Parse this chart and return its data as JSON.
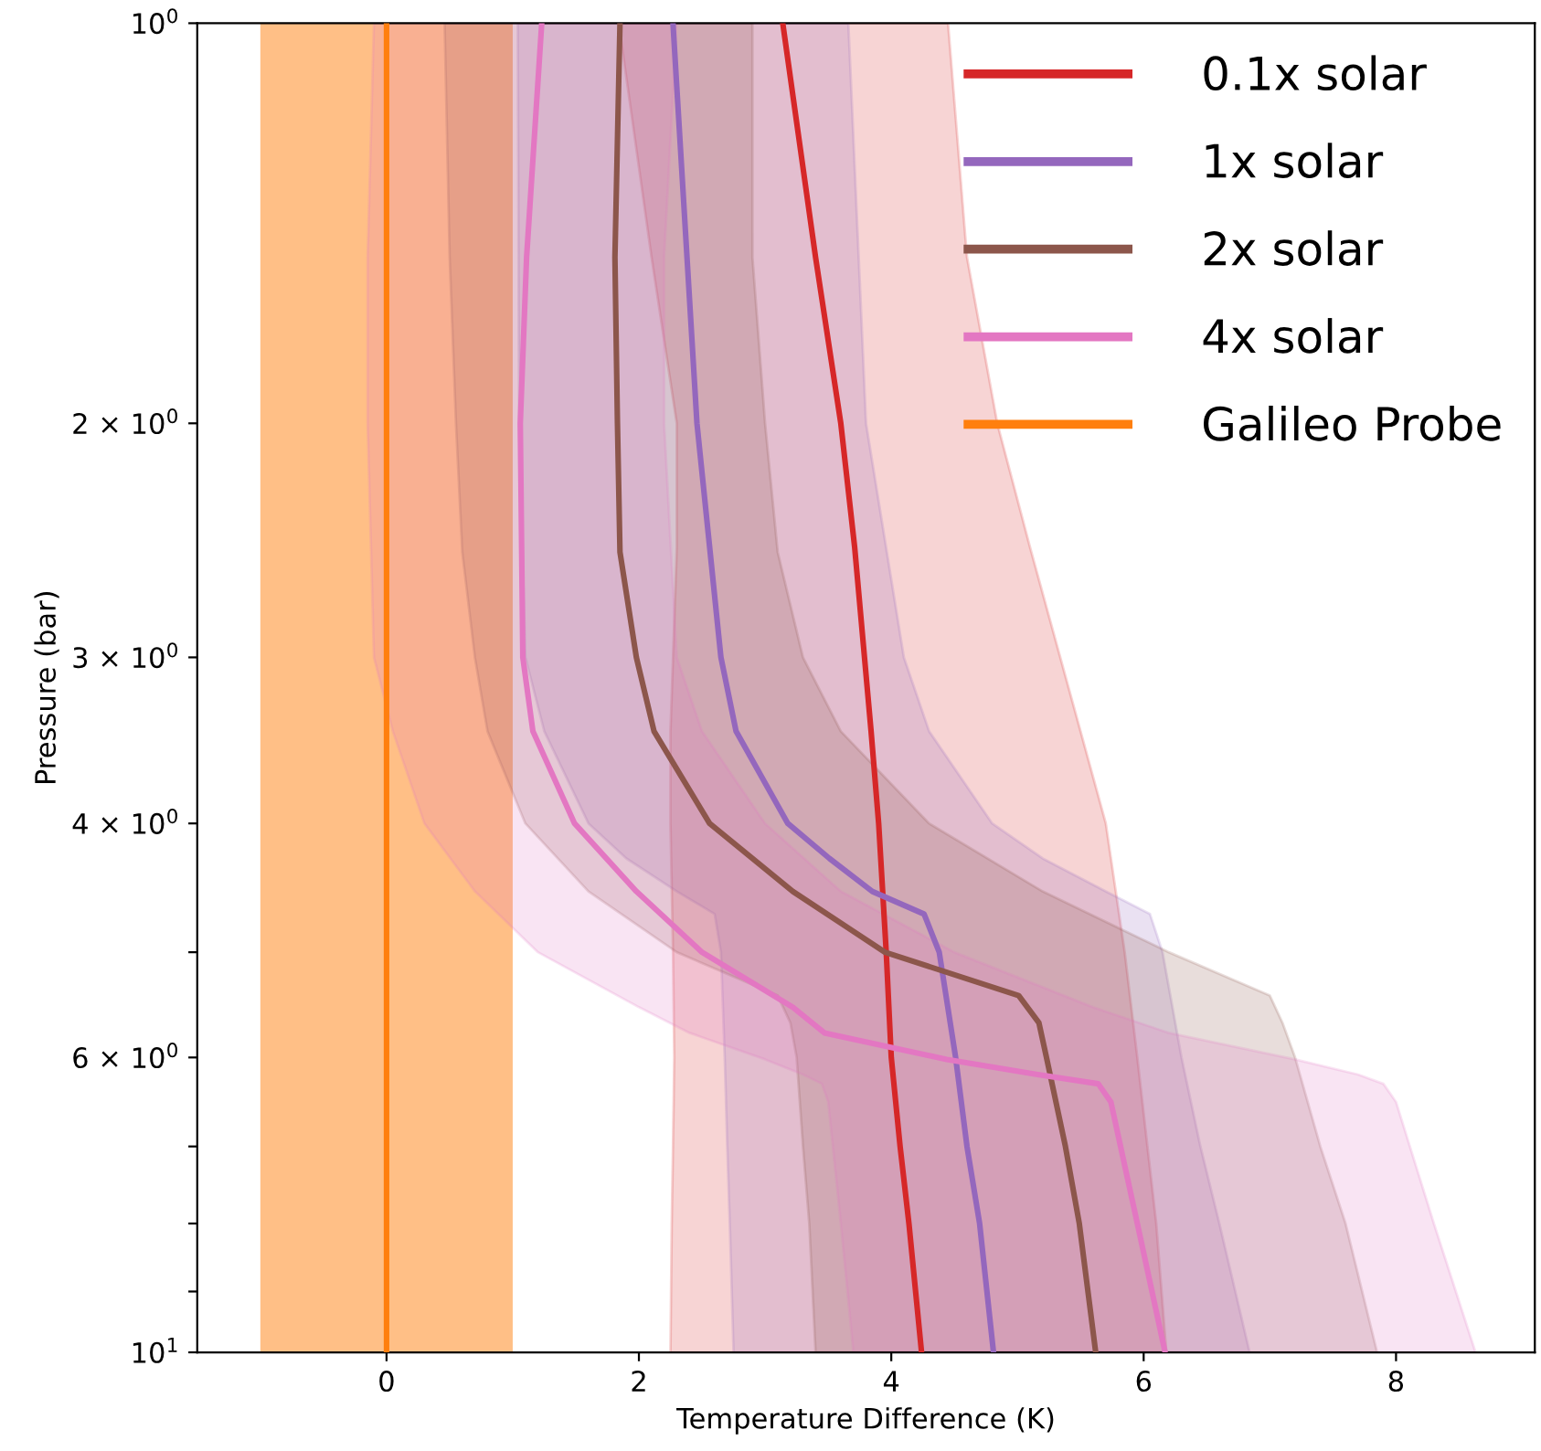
{
  "chart_data": {
    "type": "line",
    "orientation": "horizontal",
    "xlabel": "Temperature Difference (K)",
    "ylabel": "Pressure (bar)",
    "log": "y",
    "xlim": [
      -1.5,
      9.1
    ],
    "ylim": [
      10,
      1
    ],
    "xticks": [
      0,
      2,
      4,
      6,
      8
    ],
    "yticks": [
      {
        "value": 1,
        "label": "10$^{0}$"
      },
      {
        "value": 2,
        "label": "2 × 10$^{0}$"
      },
      {
        "value": 3,
        "label": "3 × 10$^{0}$"
      },
      {
        "value": 4,
        "label": "4 × 10$^{0}$"
      },
      {
        "value": 5,
        "label": null
      },
      {
        "value": 6,
        "label": "6 × 10$^{0}$"
      },
      {
        "value": 7,
        "label": null
      },
      {
        "value": 8,
        "label": null
      },
      {
        "value": 9,
        "label": null
      },
      {
        "value": 10,
        "label": "10$^{1}$"
      }
    ],
    "grid": false,
    "legend": "top right",
    "line_style": "solid",
    "marker": "none",
    "series": [
      {
        "name": "0.1x solar",
        "color": "#d62728",
        "values": [
          3.14,
          3.4,
          3.6,
          3.71,
          3.84,
          3.9,
          3.96,
          4.0,
          4.07,
          4.14,
          4.24
        ],
        "x": [
          1,
          1.5,
          2,
          2.48,
          3.41,
          4,
          5,
          6,
          7,
          8,
          10
        ],
        "upper": [
          4.45,
          4.6,
          4.84,
          5.1,
          5.5,
          5.7,
          5.85,
          5.95,
          6.03,
          6.1,
          6.18
        ],
        "lower": [
          1.84,
          2.1,
          2.3,
          2.3,
          2.25,
          2.25,
          2.27,
          2.28,
          2.27,
          2.26,
          2.25
        ]
      },
      {
        "name": "1x solar",
        "color": "#9467bd",
        "values": [
          2.27,
          2.46,
          2.65,
          2.77,
          3.18,
          3.51,
          3.85,
          4.26,
          4.38,
          4.51,
          4.6,
          4.7,
          4.81
        ],
        "x": [
          1,
          2,
          3,
          3.41,
          4,
          4.25,
          4.5,
          4.68,
          5,
          6,
          7,
          8,
          10
        ],
        "upper": [
          3.66,
          3.8,
          4.1,
          4.3,
          4.8,
          5.2,
          5.7,
          6.05,
          6.15,
          6.3,
          6.45,
          6.6,
          6.84
        ],
        "lower": [
          1.04,
          1.05,
          1.1,
          1.25,
          1.6,
          1.9,
          2.3,
          2.6,
          2.65,
          2.68,
          2.7,
          2.72,
          2.75
        ]
      },
      {
        "name": "2x solar",
        "color": "#8c564b",
        "values": [
          1.85,
          1.81,
          1.83,
          1.85,
          1.98,
          2.12,
          2.56,
          3.22,
          3.95,
          5.01,
          5.17,
          5.23,
          5.38,
          5.49,
          5.62
        ],
        "x": [
          1,
          1.5,
          2,
          2.5,
          3,
          3.41,
          4,
          4.5,
          5,
          5.39,
          5.65,
          6,
          7,
          8,
          10
        ],
        "upper": [
          2.9,
          2.9,
          3.0,
          3.1,
          3.3,
          3.6,
          4.3,
          5.2,
          6.2,
          7.0,
          7.1,
          7.2,
          7.4,
          7.6,
          7.85
        ],
        "lower": [
          0.46,
          0.5,
          0.55,
          0.6,
          0.7,
          0.8,
          1.1,
          1.6,
          2.3,
          3.1,
          3.2,
          3.25,
          3.3,
          3.35,
          3.4
        ]
      },
      {
        "name": "4x solar",
        "color": "#e377c2",
        "values": [
          1.23,
          1.11,
          1.06,
          1.08,
          1.16,
          1.49,
          1.98,
          2.5,
          3.22,
          3.47,
          4.44,
          5.16,
          5.64,
          5.74,
          5.95,
          6.17
        ],
        "x": [
          1,
          1.5,
          2,
          3,
          3.41,
          4,
          4.5,
          5,
          5.5,
          5.75,
          6.02,
          6.18,
          6.28,
          6.48,
          8,
          10
        ],
        "upper": [
          2.3,
          2.2,
          2.2,
          2.3,
          2.5,
          3.0,
          3.6,
          4.5,
          5.6,
          6.2,
          7.2,
          7.7,
          7.9,
          8.0,
          8.3,
          8.63
        ],
        "lower": [
          -0.1,
          -0.15,
          -0.15,
          -0.1,
          0.05,
          0.3,
          0.7,
          1.2,
          2.0,
          2.4,
          3.0,
          3.3,
          3.45,
          3.5,
          3.6,
          3.7
        ]
      },
      {
        "name": "Galileo Probe",
        "color": "#ff7f0e",
        "values": [
          0,
          0
        ],
        "x": [
          1,
          10
        ]
      }
    ],
    "bands": [
      {
        "axis": "x",
        "from": -1,
        "to": 1,
        "label": null,
        "color": "#ff7f0e"
      }
    ]
  }
}
